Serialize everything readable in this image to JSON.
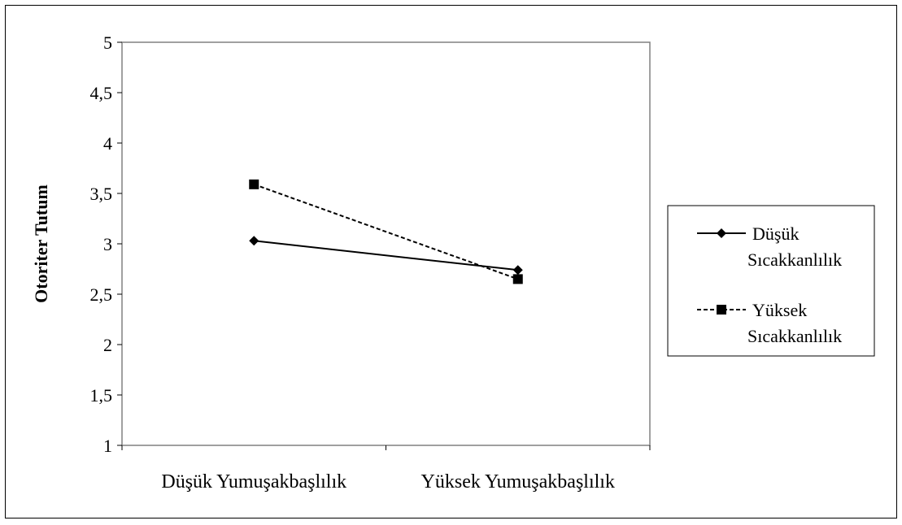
{
  "chart_data": {
    "type": "line",
    "title": "",
    "xlabel": "",
    "ylabel": "Otoriter Tutum",
    "categories": [
      "Düşük Yumuşakbaşlılık",
      "Yüksek Yumuşakbaşlılık"
    ],
    "ylim": [
      1,
      5
    ],
    "yticks": [
      "1",
      "1,5",
      "2",
      "2,5",
      "3",
      "3,5",
      "4",
      "4,5",
      "5"
    ],
    "grid": false,
    "legend_position": "right",
    "series": [
      {
        "name_lines": [
          "Düşük",
          "Sıcakkanlılık"
        ],
        "values": [
          3.03,
          2.74
        ],
        "marker": "diamond",
        "line_style": "solid",
        "color": "#000000"
      },
      {
        "name_lines": [
          "Yüksek",
          "Sıcakkanlılık"
        ],
        "values": [
          3.59,
          2.65
        ],
        "marker": "square",
        "line_style": "dashed",
        "color": "#000000"
      }
    ]
  }
}
